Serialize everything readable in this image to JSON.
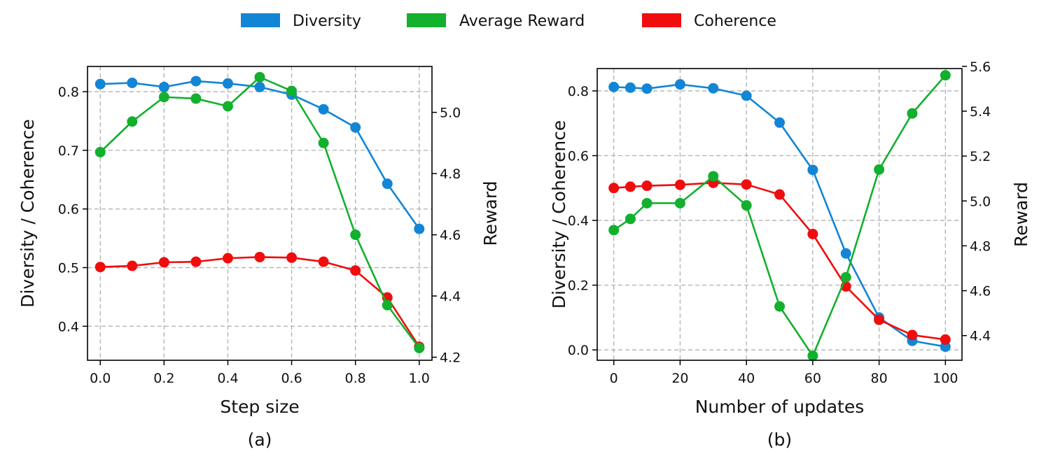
{
  "legend": {
    "items": [
      {
        "label": "Diversity",
        "color": "#1385d5"
      },
      {
        "label": "Average Reward",
        "color": "#12b02d"
      },
      {
        "label": "Coherence",
        "color": "#ef0d0d"
      }
    ]
  },
  "chart_data": [
    {
      "type": "line",
      "caption": "(a)",
      "xlabel": "Step size",
      "ylabel": "Diversity / Coherence",
      "y2label": "Reward",
      "x": [
        0.0,
        0.1,
        0.2,
        0.3,
        0.4,
        0.5,
        0.6,
        0.7,
        0.8,
        0.9,
        1.0
      ],
      "xlim": [
        -0.04,
        1.04
      ],
      "xticks": [
        0.0,
        0.2,
        0.4,
        0.6,
        0.8,
        1.0
      ],
      "xtick_labels": [
        "0.0",
        "0.2",
        "0.4",
        "0.6",
        "0.8",
        "1.0"
      ],
      "ylim": [
        0.342,
        0.843
      ],
      "yticks": [
        0.4,
        0.5,
        0.6,
        0.7,
        0.8
      ],
      "ytick_labels": [
        "0.4",
        "0.5",
        "0.6",
        "0.7",
        "0.8"
      ],
      "y2lim": [
        4.19,
        5.15
      ],
      "y2ticks": [
        4.2,
        4.4,
        4.6,
        4.8,
        5.0
      ],
      "y2tick_labels": [
        "4.2",
        "4.4",
        "4.6",
        "4.8",
        "5.0"
      ],
      "grid": true,
      "series": [
        {
          "name": "Diversity",
          "axis": "left",
          "color": "#1385d5",
          "values": [
            0.813,
            0.815,
            0.808,
            0.818,
            0.814,
            0.808,
            0.795,
            0.77,
            0.739,
            0.643,
            0.566
          ]
        },
        {
          "name": "Coherence",
          "axis": "left",
          "color": "#ef0d0d",
          "values": [
            0.501,
            0.503,
            0.509,
            0.51,
            0.516,
            0.518,
            0.517,
            0.51,
            0.495,
            0.449,
            0.365
          ]
        },
        {
          "name": "Average Reward",
          "axis": "right",
          "color": "#12b02d",
          "values": [
            4.87,
            4.97,
            5.05,
            5.045,
            5.02,
            5.115,
            5.07,
            4.9,
            4.6,
            4.37,
            4.23
          ]
        }
      ]
    },
    {
      "type": "line",
      "caption": "(b)",
      "xlabel": "Number of updates",
      "ylabel": "Diversity / Coherence",
      "y2label": "Reward",
      "x": [
        0,
        5,
        10,
        20,
        30,
        40,
        50,
        60,
        70,
        80,
        90,
        100
      ],
      "xlim": [
        -5,
        105
      ],
      "xticks": [
        0,
        20,
        40,
        60,
        80,
        100
      ],
      "xtick_labels": [
        "0",
        "20",
        "40",
        "60",
        "80",
        "100"
      ],
      "ylim": [
        -0.032,
        0.869
      ],
      "yticks": [
        0.0,
        0.2,
        0.4,
        0.6,
        0.8
      ],
      "ytick_labels": [
        "0.0",
        "0.2",
        "0.4",
        "0.6",
        "0.8"
      ],
      "y2lim": [
        4.29,
        5.59
      ],
      "y2ticks": [
        4.4,
        4.6,
        4.8,
        5.0,
        5.2,
        5.4,
        5.6
      ],
      "y2tick_labels": [
        "4.4",
        "4.6",
        "4.8",
        "5.0",
        "5.2",
        "5.4",
        "5.6"
      ],
      "grid": true,
      "series": [
        {
          "name": "Diversity",
          "axis": "left",
          "color": "#1385d5",
          "values": [
            0.812,
            0.81,
            0.807,
            0.82,
            0.808,
            0.785,
            0.702,
            0.556,
            0.298,
            0.1,
            0.028,
            0.01
          ]
        },
        {
          "name": "Coherence",
          "axis": "left",
          "color": "#ef0d0d",
          "values": [
            0.5,
            0.504,
            0.507,
            0.51,
            0.516,
            0.511,
            0.48,
            0.358,
            0.196,
            0.093,
            0.046,
            0.032
          ]
        },
        {
          "name": "Average Reward",
          "axis": "right",
          "color": "#12b02d",
          "values": [
            4.87,
            4.92,
            4.99,
            4.99,
            5.11,
            4.98,
            4.53,
            4.31,
            4.66,
            5.14,
            5.39,
            5.56
          ]
        }
      ]
    }
  ]
}
